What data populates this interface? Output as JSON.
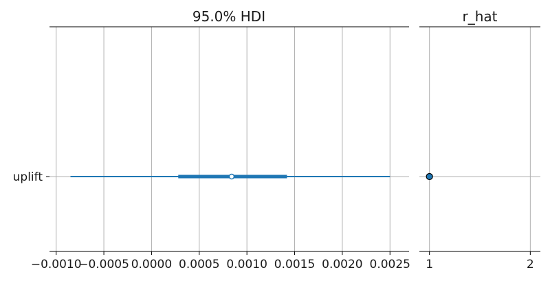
{
  "chart_data": [
    {
      "type": "forest",
      "title": "95.0% HDI",
      "variables": [
        "uplift"
      ],
      "series": [
        {
          "variable": "uplift",
          "hdi_95": [
            -0.00085,
            0.0025
          ],
          "interquartile": [
            0.00028,
            0.00142
          ],
          "point_estimate": 0.00084
        }
      ],
      "xlim": [
        -0.00107,
        0.0027
      ],
      "xticks": [
        -0.001,
        -0.0005,
        0.0,
        0.0005,
        0.001,
        0.0015,
        0.002,
        0.0025
      ],
      "xtick_labels": [
        "−0.0010",
        "−0.0005",
        "0.0000",
        "0.0005",
        "0.0010",
        "0.0015",
        "0.0020",
        "0.0025"
      ],
      "grid": true,
      "colors": {
        "line": "#1f77b4",
        "marker_fill": "#ffffff"
      }
    },
    {
      "type": "scatter",
      "title": "r_hat",
      "variables": [
        "uplift"
      ],
      "series": [
        {
          "variable": "uplift",
          "value": 1.0
        }
      ],
      "xlim": [
        0.9,
        2.1
      ],
      "xticks": [
        1,
        2
      ],
      "xtick_labels": [
        "1",
        "2"
      ],
      "grid": true,
      "colors": {
        "marker_fill": "#1f77b4",
        "marker_edge": "#000000"
      }
    }
  ]
}
